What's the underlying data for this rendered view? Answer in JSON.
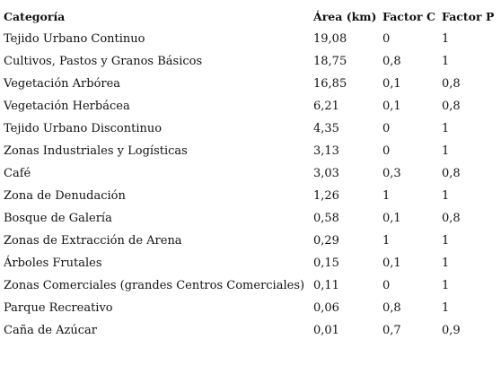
{
  "table": {
    "headers": [
      "Categoría",
      "Área (km)",
      "Factor C",
      "Factor P"
    ],
    "rows": [
      [
        "Tejido Urbano Continuo",
        "19,08",
        "0",
        "1"
      ],
      [
        "Cultivos, Pastos y Granos Básicos",
        "18,75",
        "0,8",
        "1"
      ],
      [
        "Vegetación Arbórea",
        "16,85",
        "0,1",
        "0,8"
      ],
      [
        "Vegetación Herbácea",
        "6,21",
        "0,1",
        "0,8"
      ],
      [
        "Tejido Urbano Discontinuo",
        "4,35",
        "0",
        "1"
      ],
      [
        "Zonas Industriales y Logísticas",
        "3,13",
        "0",
        "1"
      ],
      [
        "Café",
        "3,03",
        "0,3",
        "0,8"
      ],
      [
        "Zona de Denudación",
        "1,26",
        "1",
        "1"
      ],
      [
        "Bosque de Galería",
        "0,58",
        "0,1",
        "0,8"
      ],
      [
        "Zonas de Extracción de Arena",
        "0,29",
        "1",
        "1"
      ],
      [
        "Árboles Frutales",
        "0,15",
        "0,1",
        "1"
      ],
      [
        "Zonas Comerciales (grandes Centros Comerciales)",
        "0,11",
        "0",
        "1"
      ],
      [
        "Parque Recreativo",
        "0,06",
        "0,8",
        "1"
      ],
      [
        "Caña de Azúcar",
        "0,01",
        "0,7",
        "0,9"
      ]
    ]
  }
}
